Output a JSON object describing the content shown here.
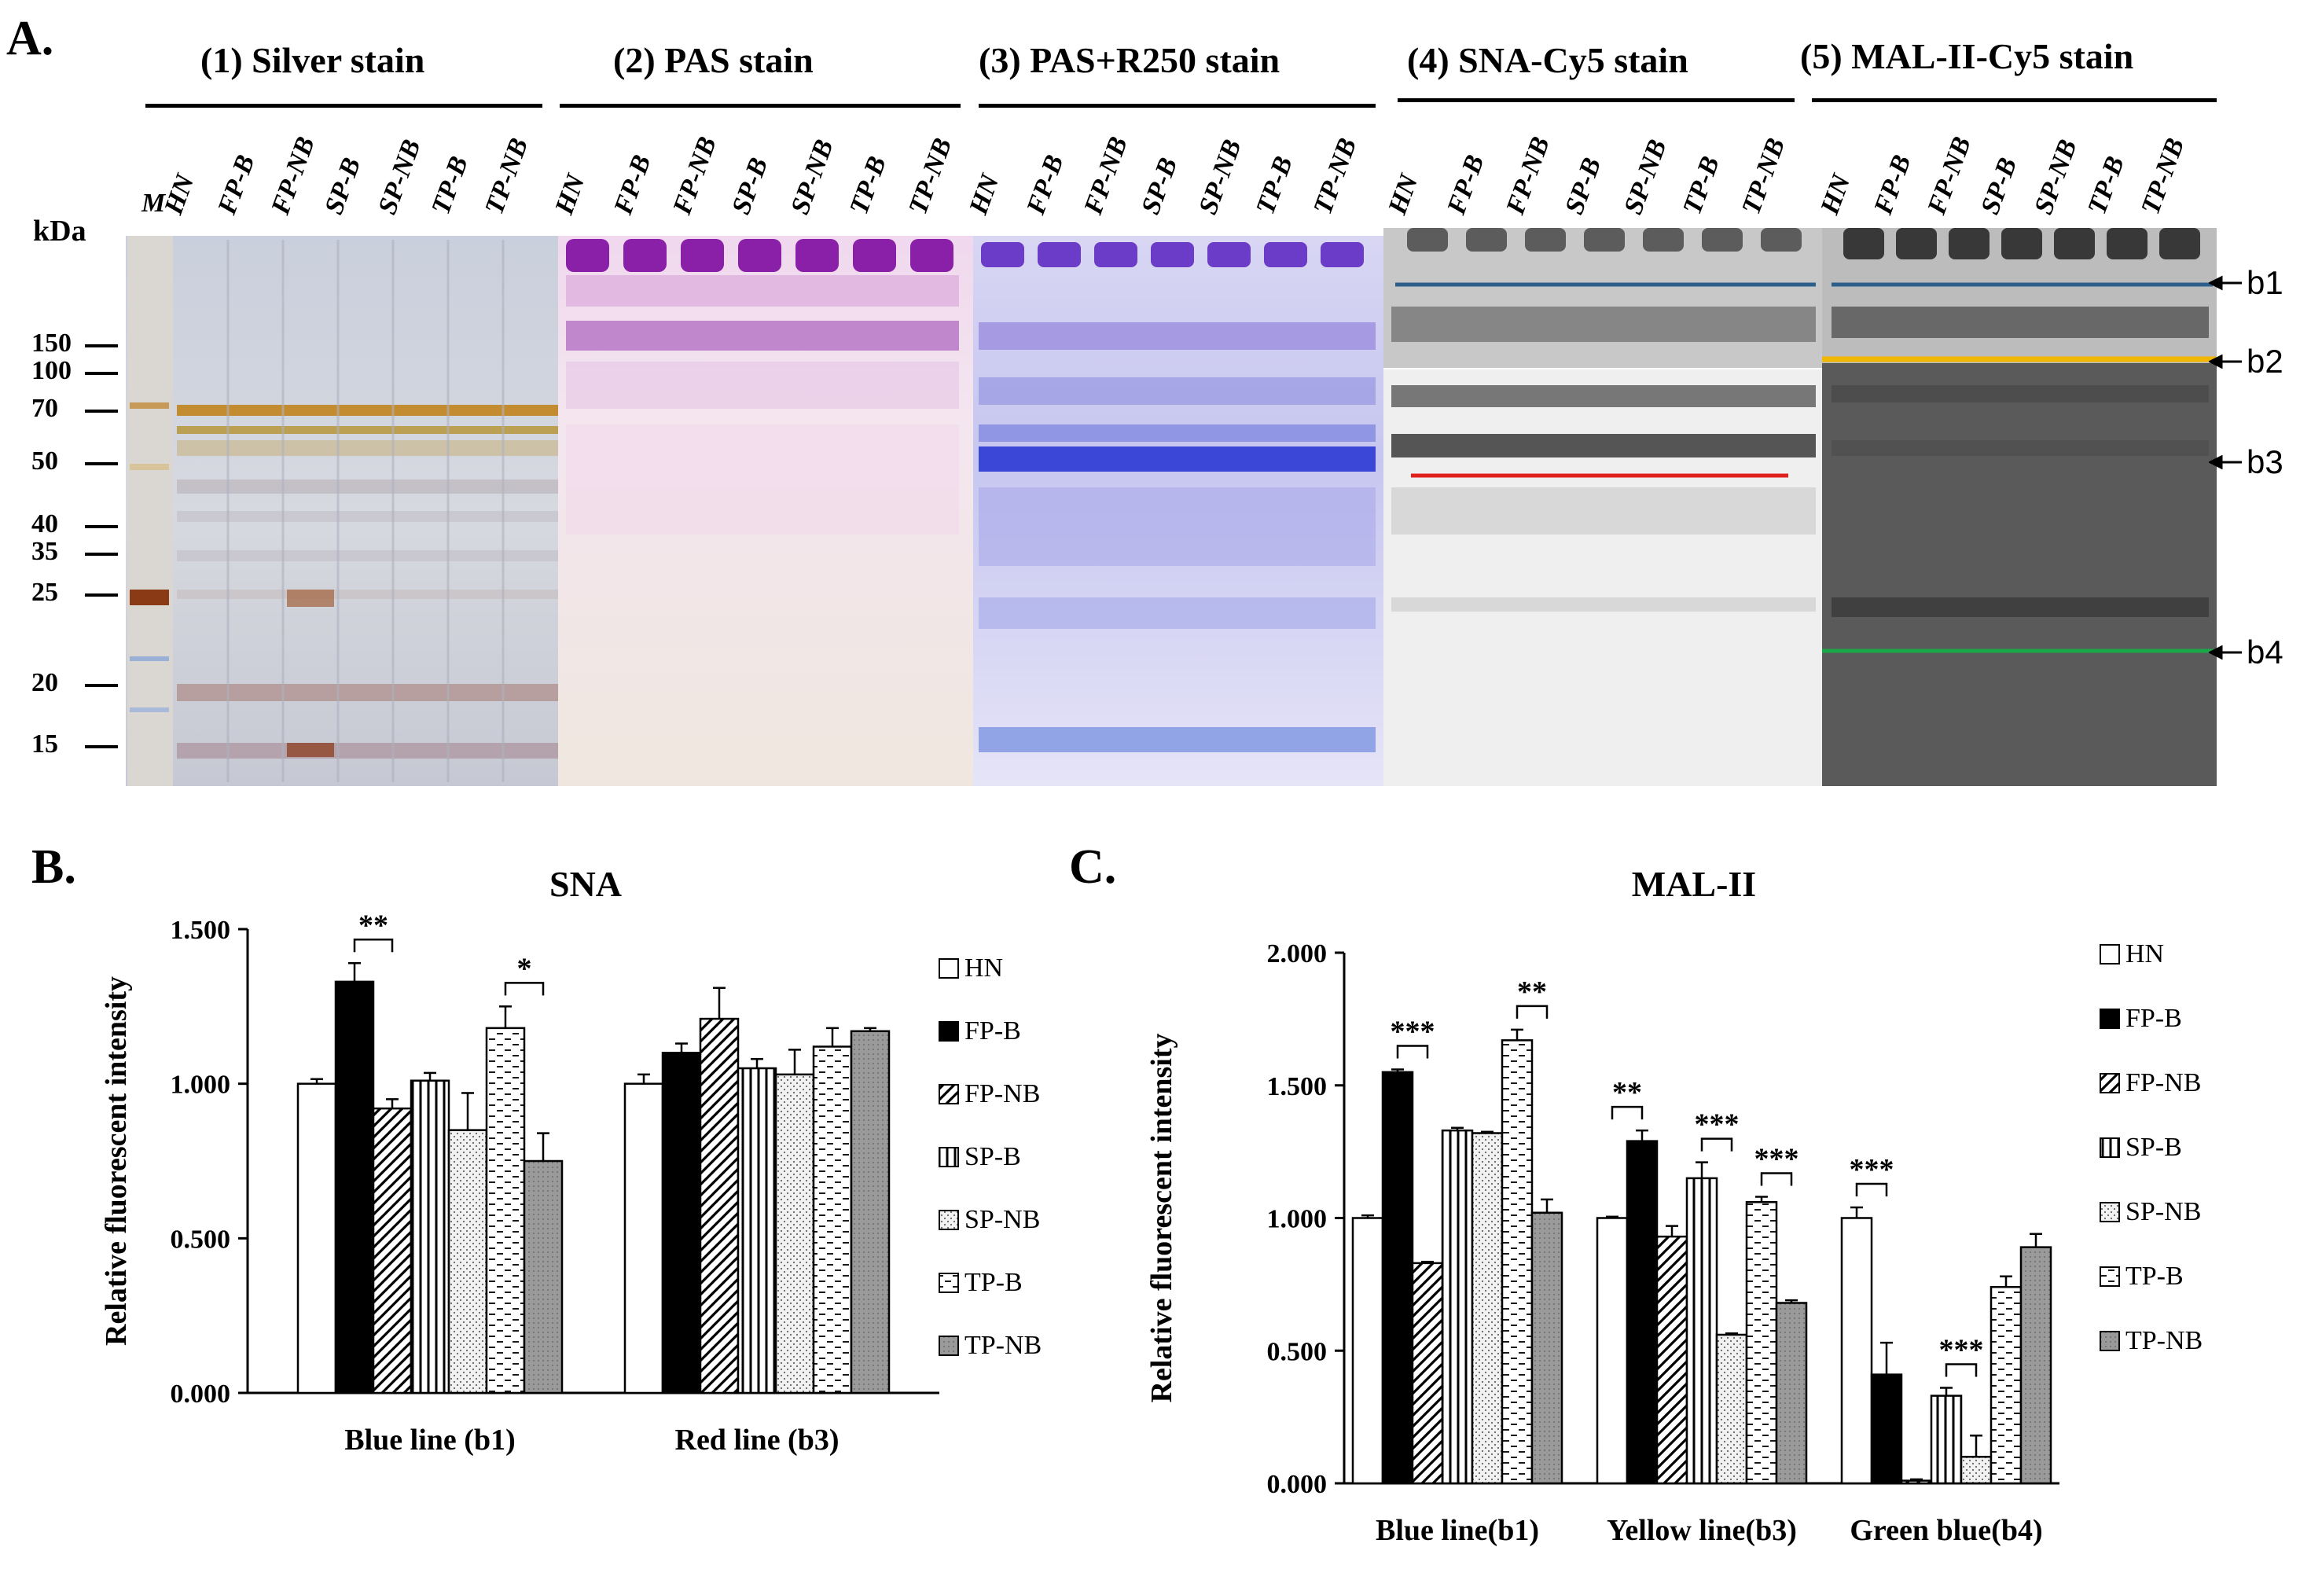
{
  "panelA": {
    "letter": "A.",
    "kda_label": "kDa",
    "marker_lane": "M",
    "lanes": [
      "HN",
      "FP-B",
      "FP-NB",
      "SP-B",
      "SP-NB",
      "TP-B",
      "TP-NB"
    ],
    "marker_sizes": [
      "150",
      "100",
      "70",
      "50",
      "40",
      "35",
      "25",
      "20",
      "15"
    ],
    "stains": [
      {
        "title": "(1) Silver stain"
      },
      {
        "title": "(2) PAS stain"
      },
      {
        "title": "(3) PAS+R250 stain"
      },
      {
        "title": "(4) SNA-Cy5  stain"
      },
      {
        "title": "(5) MAL-II-Cy5 stain"
      }
    ],
    "band_labels": [
      "b1",
      "b2",
      "b3",
      "b4"
    ],
    "line_colors": {
      "blue": "#2e5f8a",
      "yellow": "#f2b705",
      "red": "#e0201c",
      "green": "#1aa84b"
    }
  },
  "chart_data": [
    {
      "panel": "B.",
      "type": "bar",
      "title": "SNA",
      "ylabel": "Relative fluorescent intensity",
      "xlabel": "",
      "ylim": [
        0,
        1.5
      ],
      "yticks": [
        "0.000",
        "0.500",
        "1.000",
        "1.500"
      ],
      "categories": [
        "Blue line (b1)",
        "Red line (b3)"
      ],
      "series": [
        {
          "name": "HN",
          "values": [
            1.0,
            1.0
          ],
          "errors": [
            0.015,
            0.03
          ]
        },
        {
          "name": "FP-B",
          "values": [
            1.33,
            1.1
          ],
          "errors": [
            0.06,
            0.03
          ]
        },
        {
          "name": "FP-NB",
          "values": [
            0.92,
            1.21
          ],
          "errors": [
            0.03,
            0.1
          ]
        },
        {
          "name": "SP-B",
          "values": [
            1.01,
            1.05
          ],
          "errors": [
            0.025,
            0.03
          ]
        },
        {
          "name": "SP-NB",
          "values": [
            0.85,
            1.03
          ],
          "errors": [
            0.12,
            0.08
          ]
        },
        {
          "name": "TP-B",
          "values": [
            1.18,
            1.12
          ],
          "errors": [
            0.07,
            0.06
          ]
        },
        {
          "name": "TP-NB",
          "values": [
            0.75,
            1.17
          ],
          "errors": [
            0.09,
            0.01
          ]
        }
      ],
      "significance": [
        {
          "category": "Blue line (b1)",
          "from": "FP-B",
          "to": "FP-NB",
          "label": "**"
        },
        {
          "category": "Blue line (b1)",
          "from": "TP-B",
          "to": "TP-NB",
          "label": "*"
        }
      ]
    },
    {
      "panel": "C.",
      "type": "bar",
      "title": "MAL-II",
      "ylabel": "Relative fluorescent intensity",
      "xlabel": "",
      "ylim": [
        0,
        2.0
      ],
      "yticks": [
        "0.000",
        "0.500",
        "1.000",
        "1.500",
        "2.000"
      ],
      "categories": [
        "Blue line(b1)",
        "Yellow line(b3)",
        "Green blue(b4)"
      ],
      "series": [
        {
          "name": "HN",
          "values": [
            1.0,
            1.0,
            1.0
          ],
          "errors": [
            0.01,
            0.005,
            0.04
          ]
        },
        {
          "name": "FP-B",
          "values": [
            1.55,
            1.29,
            0.41
          ],
          "errors": [
            0.01,
            0.04,
            0.12
          ]
        },
        {
          "name": "FP-NB",
          "values": [
            0.83,
            0.93,
            0.01
          ],
          "errors": [
            0.005,
            0.04,
            0.005
          ]
        },
        {
          "name": "SP-B",
          "values": [
            1.33,
            1.15,
            0.33
          ],
          "errors": [
            0.01,
            0.06,
            0.03
          ]
        },
        {
          "name": "SP-NB",
          "values": [
            1.32,
            0.56,
            0.1
          ],
          "errors": [
            0.005,
            0.005,
            0.08
          ]
        },
        {
          "name": "TP-B",
          "values": [
            1.67,
            1.06,
            0.74
          ],
          "errors": [
            0.04,
            0.02,
            0.04
          ]
        },
        {
          "name": "TP-NB",
          "values": [
            1.02,
            0.68,
            0.89
          ],
          "errors": [
            0.05,
            0.01,
            0.05
          ]
        }
      ],
      "significance": [
        {
          "category": "Blue line(b1)",
          "from": "FP-B",
          "to": "FP-NB",
          "label": "***"
        },
        {
          "category": "Blue line(b1)",
          "from": "TP-B",
          "to": "TP-NB",
          "label": "**"
        },
        {
          "category": "Yellow line(b3)",
          "from": "HN",
          "to": "FP-B",
          "label": "**"
        },
        {
          "category": "Yellow line(b3)",
          "from": "SP-B",
          "to": "SP-NB",
          "label": "***"
        },
        {
          "category": "Yellow line(b3)",
          "from": "TP-B",
          "to": "TP-NB",
          "label": "***"
        },
        {
          "category": "Green blue(b4)",
          "from": "HN",
          "to": "FP-B",
          "label": "***"
        },
        {
          "category": "Green blue(b4)",
          "from": "SP-B",
          "to": "SP-NB",
          "label": "***"
        }
      ]
    }
  ],
  "legend": [
    "HN",
    "FP-B",
    "FP-NB",
    "SP-B",
    "SP-NB",
    "TP-B",
    "TP-NB"
  ]
}
